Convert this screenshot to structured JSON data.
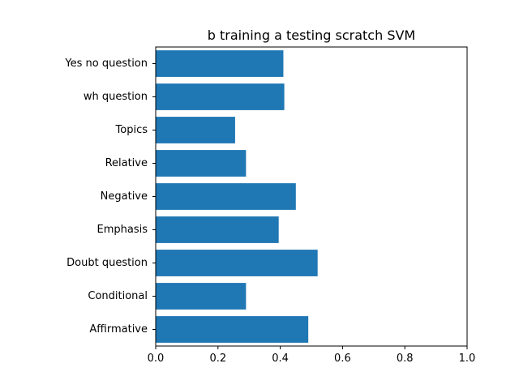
{
  "chart_data": {
    "type": "bar",
    "orientation": "horizontal",
    "title": "b training a testing scratch SVM",
    "xlabel": "",
    "ylabel": "",
    "categories": [
      "Affirmative",
      "Conditional",
      "Doubt question",
      "Emphasis",
      "Negative",
      "Relative",
      "Topics",
      "wh question",
      "Yes no question"
    ],
    "values": [
      0.49,
      0.29,
      0.52,
      0.395,
      0.45,
      0.29,
      0.255,
      0.413,
      0.41
    ],
    "xlim": [
      0,
      1
    ],
    "xticks": [
      "0.0",
      "0.2",
      "0.4",
      "0.6",
      "0.8",
      "1.0"
    ],
    "grid": false,
    "bar_color": "#1f77b4"
  }
}
